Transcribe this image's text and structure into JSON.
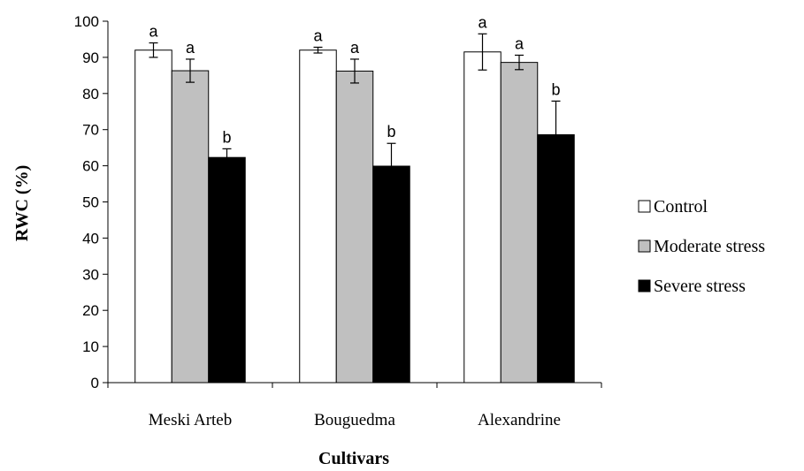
{
  "chart_data": {
    "type": "bar",
    "title": "",
    "xlabel": "Cultivars",
    "ylabel": "RWC (%)",
    "ylim": [
      0,
      100
    ],
    "yticks": [
      0,
      10,
      20,
      30,
      40,
      50,
      60,
      70,
      80,
      90,
      100
    ],
    "categories": [
      "Meski Arteb",
      "Bouguedma",
      "Alexandrine"
    ],
    "legend_position": "right",
    "series": [
      {
        "name": "Control",
        "fill": "#ffffff",
        "values": [
          92,
          92,
          91.5
        ],
        "errors": [
          2,
          0.8,
          5
        ],
        "labels": [
          "a",
          "a",
          "a"
        ]
      },
      {
        "name": "Moderate stress",
        "fill": "#c0c0c0",
        "values": [
          86.3,
          86.2,
          88.6
        ],
        "errors": [
          3.2,
          3.3,
          2
        ],
        "labels": [
          "a",
          "a",
          "a"
        ]
      },
      {
        "name": "Severe stress",
        "fill": "#000000",
        "values": [
          62.3,
          59.9,
          68.6
        ],
        "errors": [
          2.4,
          6.3,
          9.3
        ],
        "labels": [
          "b",
          "b",
          "b"
        ]
      }
    ]
  }
}
